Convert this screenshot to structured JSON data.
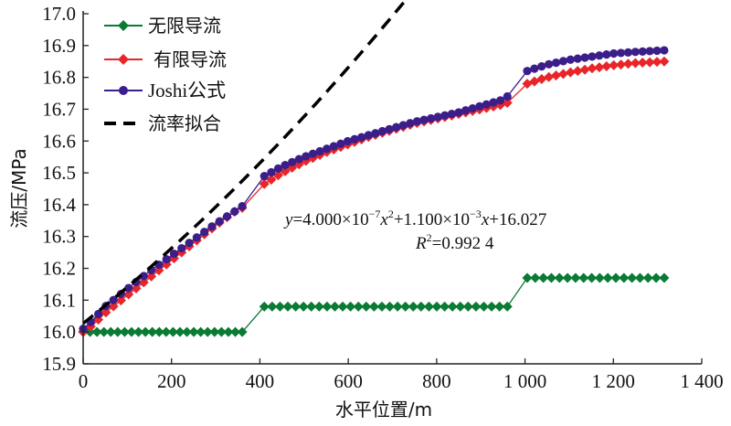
{
  "chart_data": {
    "type": "line",
    "title": "",
    "xlabel": "水平位置/m",
    "ylabel": "流压/MPa",
    "xlim": [
      0,
      1400
    ],
    "ylim": [
      15.9,
      17.0
    ],
    "xticks": [
      0,
      200,
      400,
      600,
      800,
      1000,
      1200,
      1400
    ],
    "xtick_labels": [
      "0",
      "200",
      "400",
      "600",
      "800",
      "1 000",
      "1 200",
      "1 400"
    ],
    "yticks": [
      15.9,
      16.0,
      16.1,
      16.2,
      16.3,
      16.4,
      16.5,
      16.6,
      16.7,
      16.8,
      16.9,
      17.0
    ],
    "ytick_labels": [
      "15.9",
      "16.0",
      "16.1",
      "16.2",
      "16.3",
      "16.4",
      "16.5",
      "16.6",
      "16.7",
      "16.8",
      "16.9",
      "17.0"
    ],
    "grid": false,
    "legend_position": "top-left",
    "series": [
      {
        "name": "无限导流",
        "color": "#0a7a35",
        "marker": "diamond",
        "segments": [
          {
            "x_start": 0,
            "x_end": 360,
            "y": 16.0,
            "n": 24
          },
          {
            "x_start": 410,
            "x_end": 960,
            "y": 16.08,
            "n": 32
          },
          {
            "x_start": 1005,
            "x_end": 1315,
            "y": 16.17,
            "n": 18
          }
        ]
      },
      {
        "name": "有限导流",
        "color": "#e8262a",
        "marker": "diamond",
        "points": [
          [
            0,
            16.0
          ],
          [
            20,
            16.02
          ],
          [
            50,
            16.06
          ],
          [
            100,
            16.115
          ],
          [
            150,
            16.17
          ],
          [
            200,
            16.225
          ],
          [
            250,
            16.28
          ],
          [
            300,
            16.335
          ],
          [
            350,
            16.385
          ],
          [
            360,
            16.39
          ],
          [
            410,
            16.465
          ],
          [
            450,
            16.5
          ],
          [
            500,
            16.535
          ],
          [
            550,
            16.565
          ],
          [
            600,
            16.59
          ],
          [
            650,
            16.615
          ],
          [
            700,
            16.635
          ],
          [
            750,
            16.655
          ],
          [
            800,
            16.67
          ],
          [
            850,
            16.685
          ],
          [
            900,
            16.7
          ],
          [
            950,
            16.715
          ],
          [
            960,
            16.72
          ],
          [
            1005,
            16.78
          ],
          [
            1050,
            16.8
          ],
          [
            1100,
            16.815
          ],
          [
            1150,
            16.828
          ],
          [
            1200,
            16.838
          ],
          [
            1250,
            16.845
          ],
          [
            1315,
            16.85
          ]
        ]
      },
      {
        "name": "Joshi公式",
        "color": "#3b1e8a",
        "marker": "circle",
        "points": [
          [
            0,
            16.01
          ],
          [
            20,
            16.035
          ],
          [
            50,
            16.08
          ],
          [
            100,
            16.135
          ],
          [
            150,
            16.19
          ],
          [
            200,
            16.24
          ],
          [
            250,
            16.29
          ],
          [
            300,
            16.34
          ],
          [
            350,
            16.385
          ],
          [
            360,
            16.395
          ],
          [
            410,
            16.49
          ],
          [
            450,
            16.52
          ],
          [
            500,
            16.55
          ],
          [
            550,
            16.575
          ],
          [
            600,
            16.6
          ],
          [
            650,
            16.62
          ],
          [
            700,
            16.64
          ],
          [
            750,
            16.66
          ],
          [
            800,
            16.675
          ],
          [
            850,
            16.69
          ],
          [
            900,
            16.71
          ],
          [
            950,
            16.73
          ],
          [
            960,
            16.74
          ],
          [
            1005,
            16.82
          ],
          [
            1050,
            16.84
          ],
          [
            1100,
            16.855
          ],
          [
            1150,
            16.865
          ],
          [
            1200,
            16.875
          ],
          [
            1250,
            16.88
          ],
          [
            1315,
            16.885
          ]
        ]
      },
      {
        "name": "流率拟合",
        "color": "#000000",
        "style": "dashed",
        "equation": {
          "a": 4e-07,
          "b": 0.0011,
          "c": 16.027
        },
        "x_range": [
          0,
          1315
        ]
      }
    ],
    "annotations": [
      {
        "text": "y=4.000×10⁻⁷x²+1.100×10⁻³x+16.027"
      },
      {
        "text": "R²=0.992 4"
      }
    ]
  },
  "legend": {
    "items": [
      "无限导流",
      "有限导流",
      "Joshi公式",
      "流率拟合"
    ]
  },
  "annotation": {
    "eq_y": "y",
    "eq_part1": "=4.000×10",
    "eq_exp1": "−7",
    "eq_x1": "x",
    "eq_exp2": "2",
    "eq_part2": "+1.100×10",
    "eq_exp3": "−3",
    "eq_x2": "x",
    "eq_part3": "+16.027",
    "r_label": "R",
    "r_exp": "2",
    "r_value": "=0.992 4"
  }
}
